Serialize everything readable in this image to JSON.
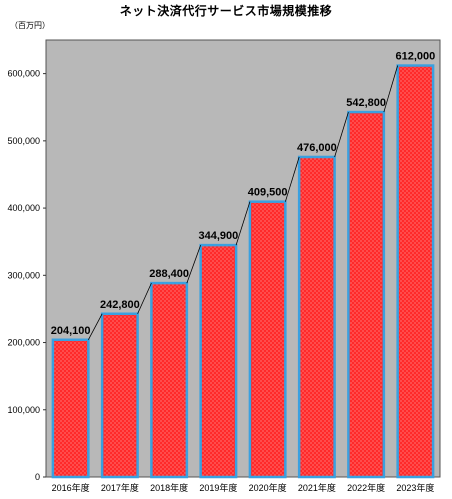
{
  "chart_data": {
    "type": "bar",
    "title": "ネット決済代行サービス市場規模推移",
    "unit": "（百万円）",
    "categories": [
      "2016年度",
      "2017年度",
      "2018年度",
      "2019年度",
      "2020年度",
      "2021年度",
      "2022年度",
      "2023年度"
    ],
    "values": [
      204100,
      242800,
      288400,
      344900,
      409500,
      476000,
      542800,
      612000
    ],
    "value_labels": [
      "204,100",
      "242,800",
      "288,400",
      "344,900",
      "409,500",
      "476,000",
      "542,800",
      "612,000"
    ],
    "yticks": [
      "0",
      "100,000",
      "200,000",
      "300,000",
      "400,000",
      "500,000",
      "600,000"
    ],
    "ylim": [
      0,
      650000
    ],
    "grid": false,
    "colors": {
      "bar_fill": "#ff2a2a",
      "bar_outline": "#3aa0e0",
      "plot_background": "#b8b8b8",
      "connector_line": "#000000"
    }
  }
}
